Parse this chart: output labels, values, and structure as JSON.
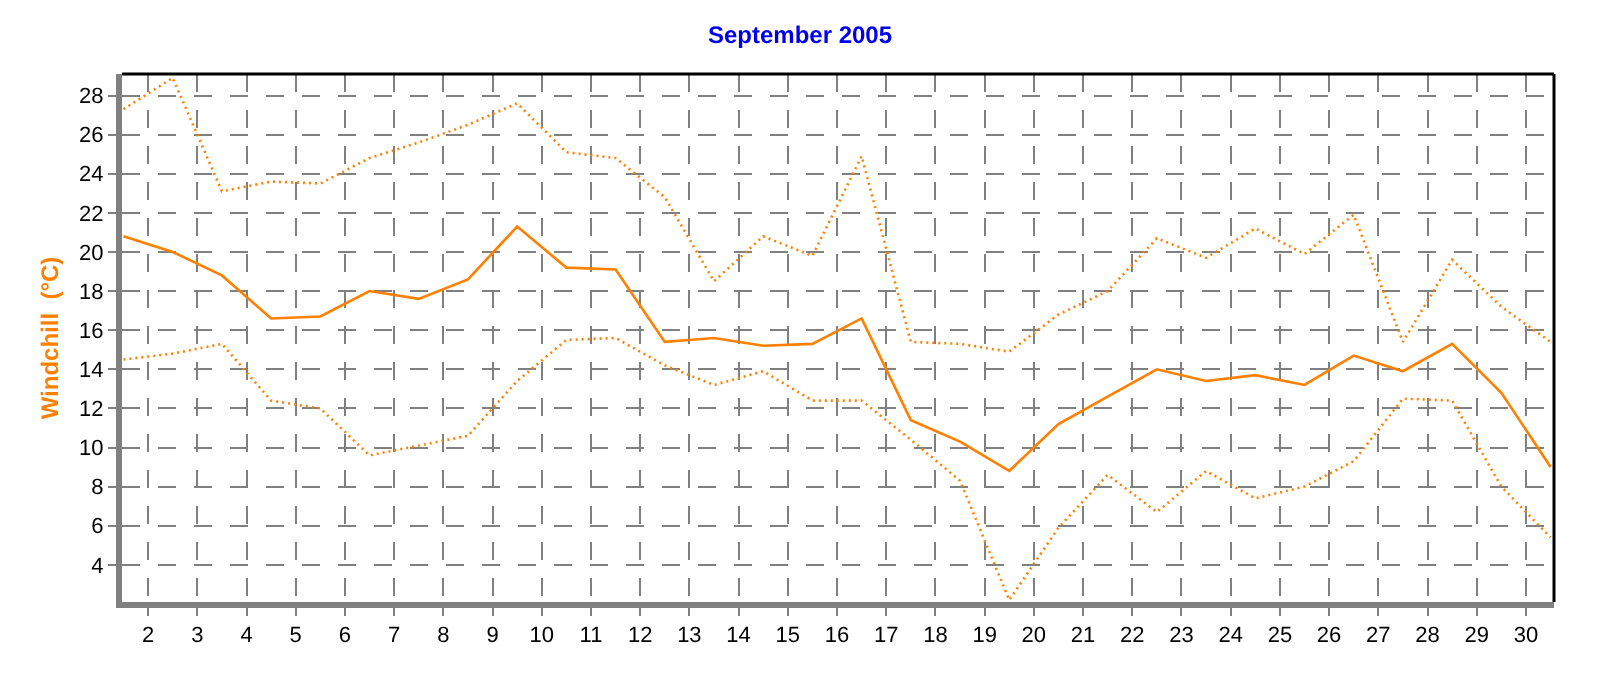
{
  "chart_data": {
    "type": "line",
    "title": "September 2005",
    "ylabel": "Windchill  (°C)",
    "x": [
      1.5,
      2.5,
      3.5,
      4.5,
      5.5,
      6.5,
      7.5,
      8.5,
      9.5,
      10.5,
      11.5,
      12.5,
      13.5,
      14.5,
      15.5,
      16.5,
      17.5,
      18.5,
      19.5,
      20.5,
      21.5,
      22.5,
      23.5,
      24.5,
      25.5,
      26.5,
      27.5,
      28.5,
      29.5,
      30.5
    ],
    "series": [
      {
        "color": "#ff8000",
        "line_style": "dotted",
        "values": [
          27.3,
          28.9,
          23.1,
          23.6,
          23.5,
          24.8,
          25.6,
          26.5,
          27.6,
          25.1,
          24.8,
          22.8,
          18.5,
          20.8,
          19.8,
          24.9,
          15.4,
          15.3,
          14.9,
          16.8,
          18.0,
          20.7,
          19.7,
          21.2,
          19.9,
          21.9,
          15.4,
          19.6,
          17.2,
          15.4
        ]
      },
      {
        "color": "#ff8000",
        "line_style": "solid",
        "values": [
          20.8,
          20.0,
          18.8,
          16.6,
          16.7,
          18.0,
          17.6,
          18.6,
          21.3,
          19.2,
          19.1,
          15.4,
          15.6,
          15.2,
          15.3,
          16.6,
          11.4,
          10.3,
          8.8,
          11.2,
          12.6,
          14.0,
          13.4,
          13.7,
          13.2,
          14.7,
          13.9,
          15.3,
          12.8,
          9.0
        ]
      },
      {
        "color": "#ff8000",
        "line_style": "dotted",
        "values": [
          14.5,
          14.8,
          15.3,
          12.4,
          12.0,
          9.6,
          10.1,
          10.6,
          13.4,
          15.5,
          15.6,
          14.2,
          13.2,
          13.9,
          12.4,
          12.4,
          10.4,
          8.3,
          2.2,
          5.9,
          8.6,
          6.7,
          8.8,
          7.4,
          8.0,
          9.3,
          12.5,
          12.4,
          8.0,
          5.4
        ]
      }
    ],
    "xlim": [
      1.47,
      30.57
    ],
    "ylim": [
      2.1,
      29.1
    ],
    "xticks": [
      2,
      3,
      4,
      5,
      6,
      7,
      8,
      9,
      10,
      11,
      12,
      13,
      14,
      15,
      16,
      17,
      18,
      19,
      20,
      21,
      22,
      23,
      24,
      25,
      26,
      27,
      28,
      29,
      30
    ],
    "yticks": [
      4,
      6,
      8,
      10,
      12,
      14,
      16,
      18,
      20,
      22,
      24,
      26,
      28
    ],
    "grid": true,
    "marker": "none"
  }
}
